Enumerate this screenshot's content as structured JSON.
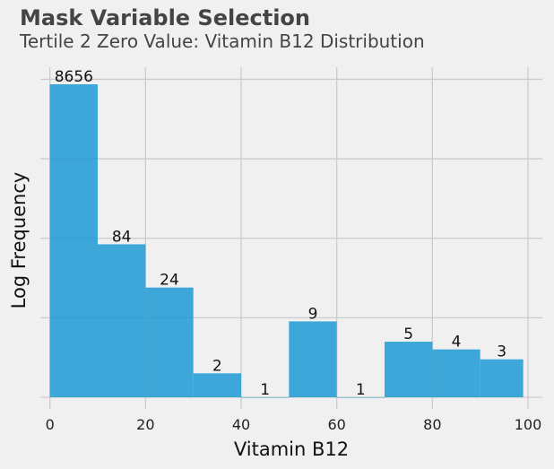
{
  "title": "Mask Variable Selection",
  "subtitle": "Tertile 2 Zero Value: Vitamin B12 Distribution",
  "chart_data": {
    "type": "bar",
    "style": "histogram",
    "xlabel": "Vitamin B12",
    "ylabel": "Log Frequency",
    "y_scale": "log",
    "y_tick_labels_shown": false,
    "grid": true,
    "bar_color": "#1f9ad6",
    "xlim": [
      -2,
      103
    ],
    "x_ticks": [
      0,
      20,
      40,
      60,
      80,
      100
    ],
    "bins": [
      {
        "start": 0,
        "end": 10,
        "count": 8656
      },
      {
        "start": 10,
        "end": 20,
        "count": 84
      },
      {
        "start": 20,
        "end": 30,
        "count": 24
      },
      {
        "start": 30,
        "end": 40,
        "count": 2
      },
      {
        "start": 40,
        "end": 50,
        "count": 1
      },
      {
        "start": 50,
        "end": 60,
        "count": 9
      },
      {
        "start": 60,
        "end": 70,
        "count": 1
      },
      {
        "start": 70,
        "end": 80,
        "count": 5
      },
      {
        "start": 80,
        "end": 90,
        "count": 4
      },
      {
        "start": 90,
        "end": 99,
        "count": 3
      }
    ]
  }
}
